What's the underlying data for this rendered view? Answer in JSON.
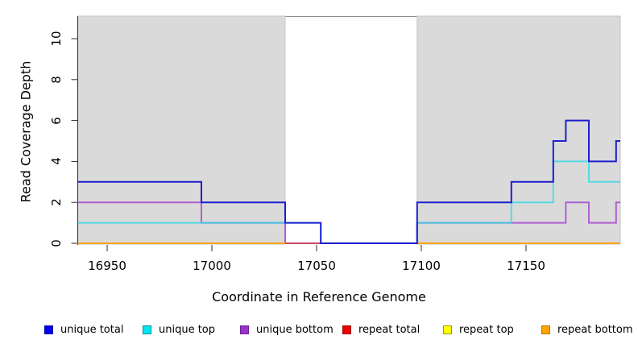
{
  "chart_data": {
    "type": "line",
    "subtype": "step-coverage",
    "title": "",
    "xlabel": "Coordinate in Reference Genome",
    "ylabel": "Read Coverage Depth",
    "xlim": [
      16936,
      17195
    ],
    "ylim": [
      0,
      11.1
    ],
    "grid": false,
    "x_ticks": [
      {
        "value": 16950,
        "label": "16950"
      },
      {
        "value": 17000,
        "label": "17000"
      },
      {
        "value": 17050,
        "label": "17050"
      },
      {
        "value": 17100,
        "label": "17100"
      },
      {
        "value": 17150,
        "label": "17150"
      }
    ],
    "y_ticks": [
      {
        "value": 0,
        "label": "0"
      },
      {
        "value": 2,
        "label": "2"
      },
      {
        "value": 4,
        "label": "4"
      },
      {
        "value": 6,
        "label": "6"
      },
      {
        "value": 8,
        "label": "8"
      },
      {
        "value": 10,
        "label": "10"
      }
    ],
    "shaded_regions": [
      {
        "x1": 16936,
        "x2": 17035,
        "fill": "#DADADA",
        "border": "#C6C6C6"
      },
      {
        "x1": 17098,
        "x2": 17195,
        "fill": "#DADADA",
        "border": "#C6C6C6"
      }
    ],
    "series": [
      {
        "name": "unique bottom",
        "line_color": "#AE5FD3",
        "opacity": 1,
        "parts": [
          {
            "steps": [
              [
                16936,
                2
              ],
              [
                16995,
                1
              ],
              [
                17035,
                0
              ],
              [
                17098,
                1
              ],
              [
                17169,
                2
              ],
              [
                17180,
                1
              ],
              [
                17193,
                2
              ]
            ],
            "x_end": 17195
          }
        ]
      },
      {
        "name": "unique top",
        "line_color": "#33D9E6",
        "opacity": 0.8,
        "parts": [
          {
            "steps": [
              [
                16936,
                1
              ],
              [
                17052,
                0
              ],
              [
                17098,
                1
              ],
              [
                17143,
                2
              ],
              [
                17163,
                4
              ],
              [
                17180,
                3
              ]
            ],
            "x_end": 17195
          }
        ]
      },
      {
        "name": "repeat top",
        "line_color": "#F2F200",
        "opacity": 1,
        "parts": [
          {
            "steps": [
              [
                17035,
                0
              ]
            ],
            "x_end": 17098
          }
        ]
      },
      {
        "name": "repeat total",
        "line_color": "#C84A66",
        "opacity": 1,
        "parts": [
          {
            "steps": [
              [
                17035,
                0
              ]
            ],
            "x_end": 17098
          }
        ]
      },
      {
        "name": "repeat bottom",
        "line_color": "#FFA318",
        "opacity": 1,
        "parts": [
          {
            "steps": [
              [
                16936,
                0
              ]
            ],
            "x_end": 17035
          },
          {
            "steps": [
              [
                17098,
                0
              ]
            ],
            "x_end": 17195
          }
        ]
      },
      {
        "name": "unique total",
        "line_color": "#1E1ECE",
        "opacity": 1,
        "parts": [
          {
            "steps": [
              [
                16936,
                3
              ],
              [
                16995,
                2
              ],
              [
                17035,
                1
              ],
              [
                17052,
                0
              ],
              [
                17098,
                2
              ],
              [
                17143,
                3
              ],
              [
                17163,
                5
              ],
              [
                17169,
                6
              ],
              [
                17180,
                4
              ],
              [
                17193,
                5
              ]
            ],
            "x_end": 17195
          }
        ]
      }
    ],
    "legend": {
      "position": "bottom",
      "entries": [
        {
          "label": "unique total",
          "swatch_fill": "#0000EE",
          "swatch_border": "#0000A8"
        },
        {
          "label": "unique top",
          "swatch_fill": "#00E5EE",
          "swatch_border": "#008B95"
        },
        {
          "label": "unique bottom",
          "swatch_fill": "#9A32CD",
          "swatch_border": "#6A1F91"
        },
        {
          "label": "repeat total",
          "swatch_fill": "#EE0000",
          "swatch_border": "#A00000"
        },
        {
          "label": "repeat top",
          "swatch_fill": "#FFFF00",
          "swatch_border": "#9C9C00"
        },
        {
          "label": "repeat bottom",
          "swatch_fill": "#FFA500",
          "swatch_border": "#B87400"
        }
      ]
    },
    "frame": {
      "top_line_color": "#8E8E8E",
      "axis_color": "#2E2E2E"
    }
  }
}
